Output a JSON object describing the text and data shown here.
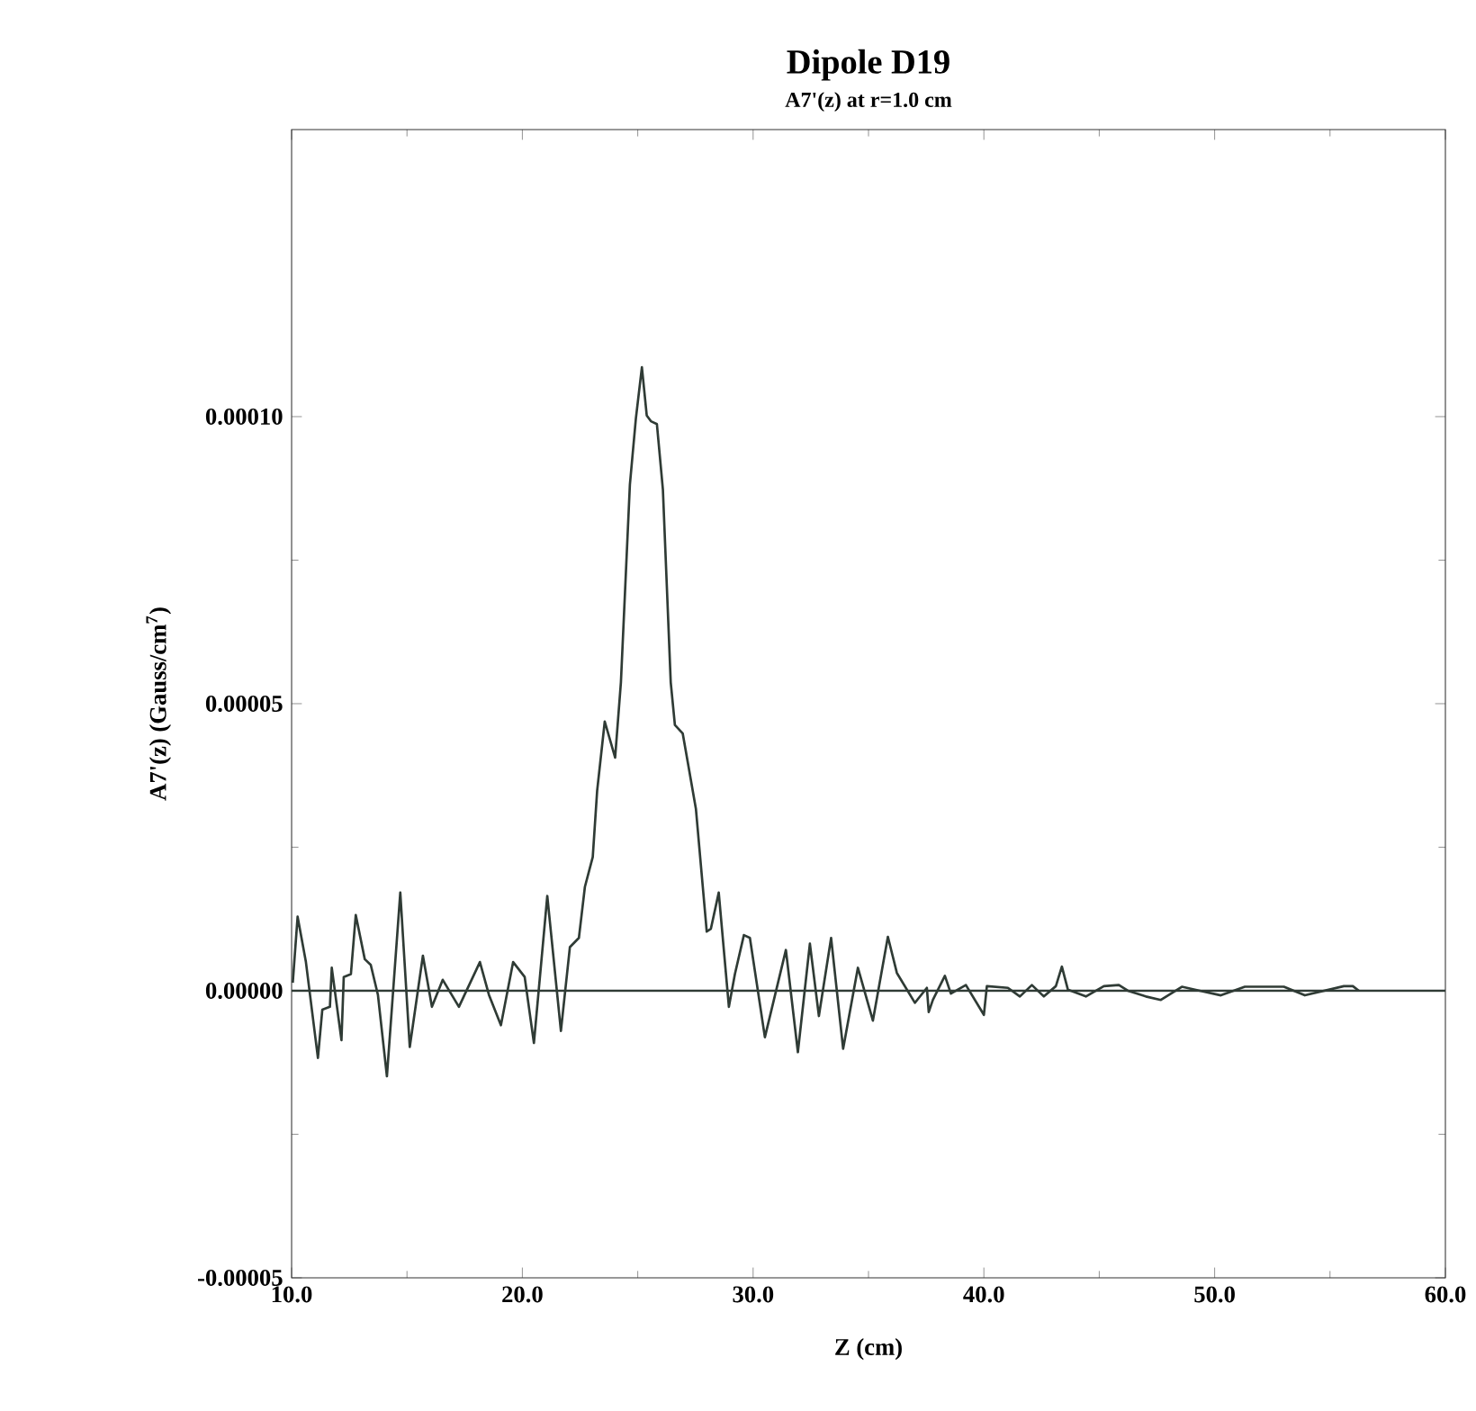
{
  "chart_data": {
    "type": "line",
    "title": "Dipole D19",
    "subtitle": "A7'(z) at r=1.0 cm",
    "xlabel": "Z (cm)",
    "ylabel": "A7'(z) (Gauss/cm$^{7}$)",
    "xlim": [
      10,
      60
    ],
    "ylim": [
      -5e-05,
      0.00015
    ],
    "xticks": [
      {
        "value": 10,
        "label": "10.0"
      },
      {
        "value": 20,
        "label": "20.0"
      },
      {
        "value": 30,
        "label": "30.0"
      },
      {
        "value": 40,
        "label": "40.0"
      },
      {
        "value": 50,
        "label": "50.0"
      },
      {
        "value": 60,
        "label": "60.0"
      }
    ],
    "yticks": [
      {
        "value": -5e-05,
        "label": "-0.00005"
      },
      {
        "value": 0,
        "label": "0.00000"
      },
      {
        "value": 5e-05,
        "label": "0.00005"
      },
      {
        "value": 0.0001,
        "label": "0.00010"
      }
    ],
    "ref_lines": [
      {
        "axis": "y",
        "value": 0,
        "color": "#2f3b35"
      }
    ],
    "x": [
      10.05,
      10.26,
      10.62,
      11.14,
      11.33,
      11.66,
      11.74,
      12.16,
      12.26,
      12.57,
      12.78,
      13.17,
      13.43,
      13.74,
      14.13,
      14.71,
      15.12,
      15.69,
      16.08,
      16.55,
      17.25,
      18.16,
      18.55,
      19.07,
      19.6,
      20.1,
      20.5,
      21.08,
      21.67,
      22.06,
      22.45,
      22.71,
      23.05,
      23.24,
      23.57,
      24.02,
      24.27,
      24.66,
      24.92,
      25.18,
      25.39,
      25.57,
      25.83,
      26.09,
      26.43,
      26.61,
      26.95,
      27.52,
      27.99,
      28.17,
      28.51,
      28.95,
      29.21,
      29.6,
      29.86,
      30.51,
      31.42,
      31.94,
      32.46,
      32.85,
      33.38,
      33.9,
      34.54,
      35.19,
      35.84,
      36.23,
      37.01,
      37.53,
      37.61,
      37.79,
      38.31,
      38.57,
      39.22,
      40.0,
      40.13,
      41.04,
      41.56,
      42.08,
      42.6,
      43.12,
      43.38,
      43.64,
      44.42,
      45.2,
      45.85,
      46.24,
      47.02,
      47.67,
      48.58,
      49.36,
      50.27,
      51.31,
      52.22,
      53.0,
      53.91,
      55.6,
      55.99,
      56.25
    ],
    "series": [
      {
        "color": "#2f3b35",
        "values": [
          1.4e-06,
          1.29e-05,
          5e-06,
          -1.17e-05,
          -3.3e-06,
          -2.8e-06,
          4e-06,
          -8.6e-06,
          2.4e-06,
          2.9e-06,
          1.32e-05,
          5.5e-06,
          4.5e-06,
          -7e-07,
          -1.49e-05,
          1.71e-05,
          -9.8e-06,
          6.1e-06,
          -2.8e-06,
          1.9e-06,
          -2.8e-06,
          5e-06,
          -7e-07,
          -6e-06,
          5e-06,
          2.4e-06,
          -9.1e-06,
          1.65e-05,
          -7e-06,
          7.6e-06,
          9.2e-06,
          1.81e-05,
          2.33e-05,
          3.48e-05,
          4.69e-05,
          4.06e-05,
          5.37e-05,
          8.82e-05,
          9.97e-05,
          0.0001086,
          0.0001002,
          9.92e-05,
          9.87e-05,
          8.73e-05,
          5.37e-05,
          4.63e-05,
          4.48e-05,
          3.17e-05,
          1.03e-05,
          1.08e-05,
          1.71e-05,
          -2.8e-06,
          2.9e-06,
          9.7e-06,
          9.2e-06,
          -8.1e-06,
          7.1e-06,
          -1.07e-05,
          8.2e-06,
          -4.4e-06,
          9.2e-06,
          -1.01e-05,
          4e-06,
          -5.2e-06,
          9.4e-06,
          3.1e-06,
          -2.1e-06,
          5e-07,
          -3.7e-06,
          -1.6e-06,
          2.6e-06,
          -5e-07,
          1e-06,
          -4.2e-06,
          8e-07,
          5e-07,
          -1e-06,
          1e-06,
          -1e-06,
          8e-07,
          4.2e-06,
          2e-07,
          -1e-06,
          8e-07,
          1e-06,
          0,
          -1e-06,
          -1.6e-06,
          7e-07,
          0,
          -8e-07,
          7e-07,
          7e-07,
          7e-07,
          -8e-07,
          8e-07,
          8e-07,
          0
        ]
      }
    ]
  }
}
